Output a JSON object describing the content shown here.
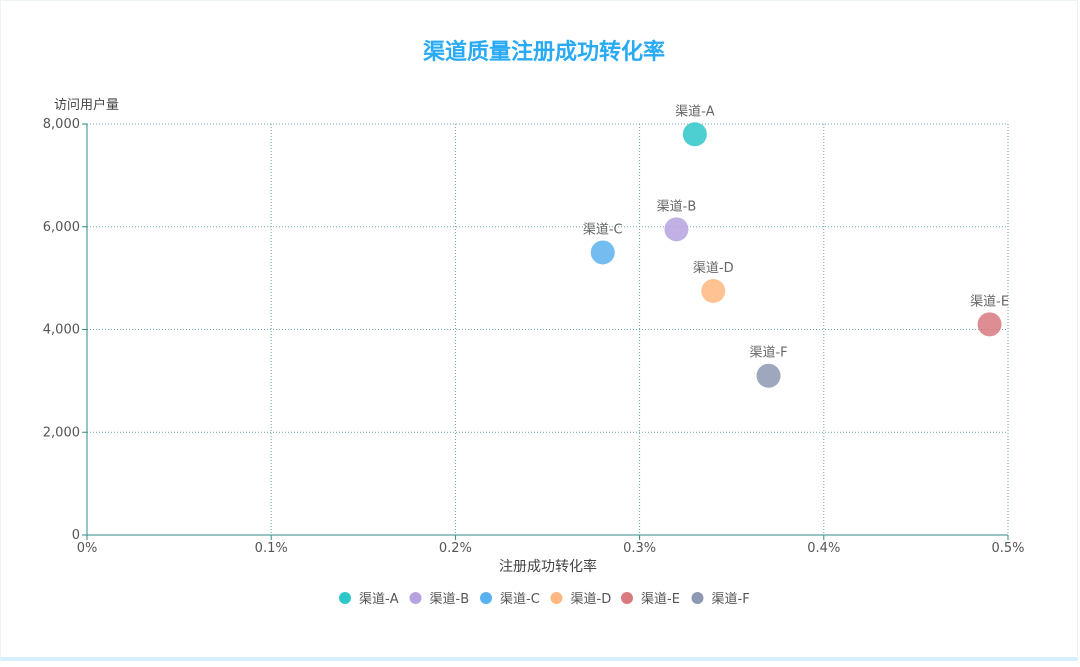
{
  "chart_data": {
    "type": "scatter",
    "title": "渠道质量注册成功转化率",
    "xlabel": "注册成功转化率",
    "ylabel": "访问用户量",
    "xlim": [
      0,
      0.005
    ],
    "ylim": [
      0,
      8000
    ],
    "x_ticks": [
      "0%",
      "0.1%",
      "0.2%",
      "0.3%",
      "0.4%",
      "0.5%"
    ],
    "y_ticks": [
      "0",
      "2,000",
      "4,000",
      "6,000",
      "8,000"
    ],
    "grid": true,
    "legend_position": "bottom",
    "series": [
      {
        "name": "渠道-A",
        "color": "#2ec7c9",
        "x": 0.0033,
        "y": 7800
      },
      {
        "name": "渠道-B",
        "color": "#b6a2de",
        "x": 0.0032,
        "y": 5950
      },
      {
        "name": "渠道-C",
        "color": "#5ab1ef",
        "x": 0.0028,
        "y": 5500
      },
      {
        "name": "渠道-D",
        "color": "#ffb980",
        "x": 0.0034,
        "y": 4750
      },
      {
        "name": "渠道-E",
        "color": "#d87a80",
        "x": 0.0049,
        "y": 4100
      },
      {
        "name": "渠道-F",
        "color": "#8d98b3",
        "x": 0.0037,
        "y": 3100
      }
    ]
  },
  "colors": {
    "title": "#29aaf4",
    "axis_line": "#2f8a8a",
    "grid_line": "#6aa6a8"
  }
}
